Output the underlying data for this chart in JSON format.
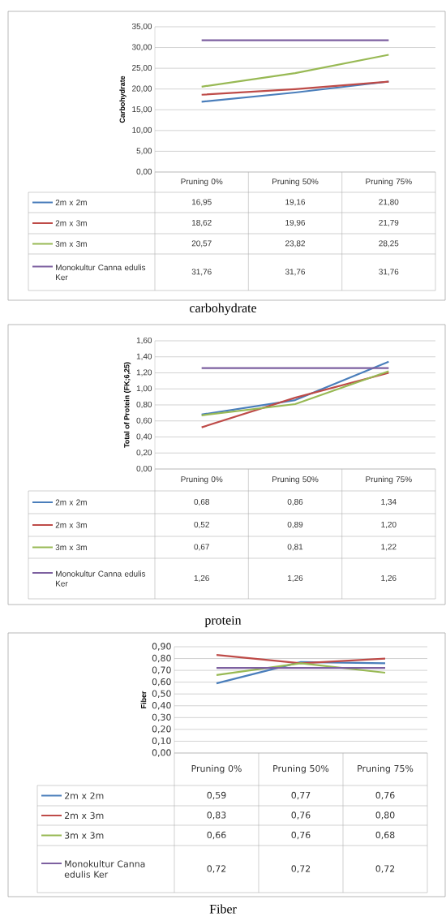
{
  "chart_data": [
    {
      "type": "line",
      "ylabel": "Carbohydrate",
      "categories": [
        "Pruning 0%",
        "Pruning 50%",
        "Pruning 75%"
      ],
      "ylim": [
        0,
        35
      ],
      "yticks": [
        {
          "value": 0,
          "label": "0,00"
        },
        {
          "value": 5,
          "label": "5,00"
        },
        {
          "value": 10,
          "label": "10,00"
        },
        {
          "value": 15,
          "label": "15,00"
        },
        {
          "value": 20,
          "label": "20,00"
        },
        {
          "value": 25,
          "label": "25,00"
        },
        {
          "value": 30,
          "label": "30,00"
        },
        {
          "value": 35,
          "label": "35,00"
        }
      ],
      "grid": "y",
      "legend": "bottom left",
      "annotations": [
        "carbohydrate"
      ],
      "series": [
        {
          "name": "2m x 2m",
          "color": "#4a7ebb",
          "values": [
            16.95,
            19.16,
            21.8
          ],
          "value_labels": [
            "16,95",
            "19,16",
            "21,80"
          ]
        },
        {
          "name": "2m x 3m",
          "color": "#be4b48",
          "values": [
            18.62,
            19.96,
            21.79
          ],
          "value_labels": [
            "18,62",
            "19,96",
            "21,79"
          ]
        },
        {
          "name": "3m x 3m",
          "color": "#98b954",
          "values": [
            20.57,
            23.82,
            28.25
          ],
          "value_labels": [
            "20,57",
            "23,82",
            "28,25"
          ]
        },
        {
          "name": "Monokultur Canna edulis Ker",
          "color": "#7d60a0",
          "values": [
            31.76,
            31.76,
            31.76
          ],
          "value_labels": [
            "31,76",
            "31,76",
            "31,76"
          ]
        }
      ]
    },
    {
      "type": "line",
      "ylabel": "Total of Protein (FK;6,25)",
      "categories": [
        "Pruning 0%",
        "Pruning 50%",
        "Pruning 75%"
      ],
      "ylim": [
        0,
        1.6
      ],
      "yticks": [
        {
          "value": 0,
          "label": "0,00"
        },
        {
          "value": 0.2,
          "label": "0,20"
        },
        {
          "value": 0.4,
          "label": "0,40"
        },
        {
          "value": 0.6,
          "label": "0,60"
        },
        {
          "value": 0.8,
          "label": "0,80"
        },
        {
          "value": 1.0,
          "label": "1,00"
        },
        {
          "value": 1.2,
          "label": "1,20"
        },
        {
          "value": 1.4,
          "label": "1,40"
        },
        {
          "value": 1.6,
          "label": "1,60"
        }
      ],
      "grid": "y",
      "legend": "bottom left",
      "annotations": [
        "protein"
      ],
      "series": [
        {
          "name": "2m x 2m",
          "color": "#4a7ebb",
          "values": [
            0.68,
            0.86,
            1.34
          ],
          "value_labels": [
            "0,68",
            "0,86",
            "1,34"
          ]
        },
        {
          "name": "2m x 3m",
          "color": "#be4b48",
          "values": [
            0.52,
            0.89,
            1.2
          ],
          "value_labels": [
            "0,52",
            "0,89",
            "1,20"
          ]
        },
        {
          "name": "3m x 3m",
          "color": "#98b954",
          "values": [
            0.67,
            0.81,
            1.22
          ],
          "value_labels": [
            "0,67",
            "0,81",
            "1,22"
          ]
        },
        {
          "name": "Monokultur Canna edulis Ker",
          "color": "#7d60a0",
          "values": [
            1.26,
            1.26,
            1.26
          ],
          "value_labels": [
            "1,26",
            "1,26",
            "1,26"
          ]
        }
      ]
    },
    {
      "type": "line",
      "ylabel": "Fiber",
      "categories": [
        "Pruning 0%",
        "Pruning 50%",
        "Pruning 75%"
      ],
      "ylim": [
        0,
        0.9
      ],
      "yticks": [
        {
          "value": 0,
          "label": "0,00"
        },
        {
          "value": 0.1,
          "label": "0,10"
        },
        {
          "value": 0.2,
          "label": "0,20"
        },
        {
          "value": 0.3,
          "label": "0,30"
        },
        {
          "value": 0.4,
          "label": "0,40"
        },
        {
          "value": 0.5,
          "label": "0,50"
        },
        {
          "value": 0.6,
          "label": "0,60"
        },
        {
          "value": 0.7,
          "label": "0,70"
        },
        {
          "value": 0.8,
          "label": "0,80"
        },
        {
          "value": 0.9,
          "label": "0,90"
        }
      ],
      "grid": "y",
      "legend": "bottom left",
      "annotations": [
        "Fiber"
      ],
      "series": [
        {
          "name": "2m x 2m",
          "color": "#4a7ebb",
          "values": [
            0.59,
            0.77,
            0.76
          ],
          "value_labels": [
            "0,59",
            "0,77",
            "0,76"
          ]
        },
        {
          "name": "2m x 3m",
          "color": "#be4b48",
          "values": [
            0.83,
            0.76,
            0.8
          ],
          "value_labels": [
            "0,83",
            "0,76",
            "0,80"
          ]
        },
        {
          "name": "3m x 3m",
          "color": "#98b954",
          "values": [
            0.66,
            0.76,
            0.68
          ],
          "value_labels": [
            "0,66",
            "0,76",
            "0,68"
          ]
        },
        {
          "name": "Monokultur Canna edulis Ker",
          "color": "#7d60a0",
          "values": [
            0.72,
            0.72,
            0.72
          ],
          "value_labels": [
            "0,72",
            "0,72",
            "0,72"
          ]
        }
      ]
    }
  ]
}
